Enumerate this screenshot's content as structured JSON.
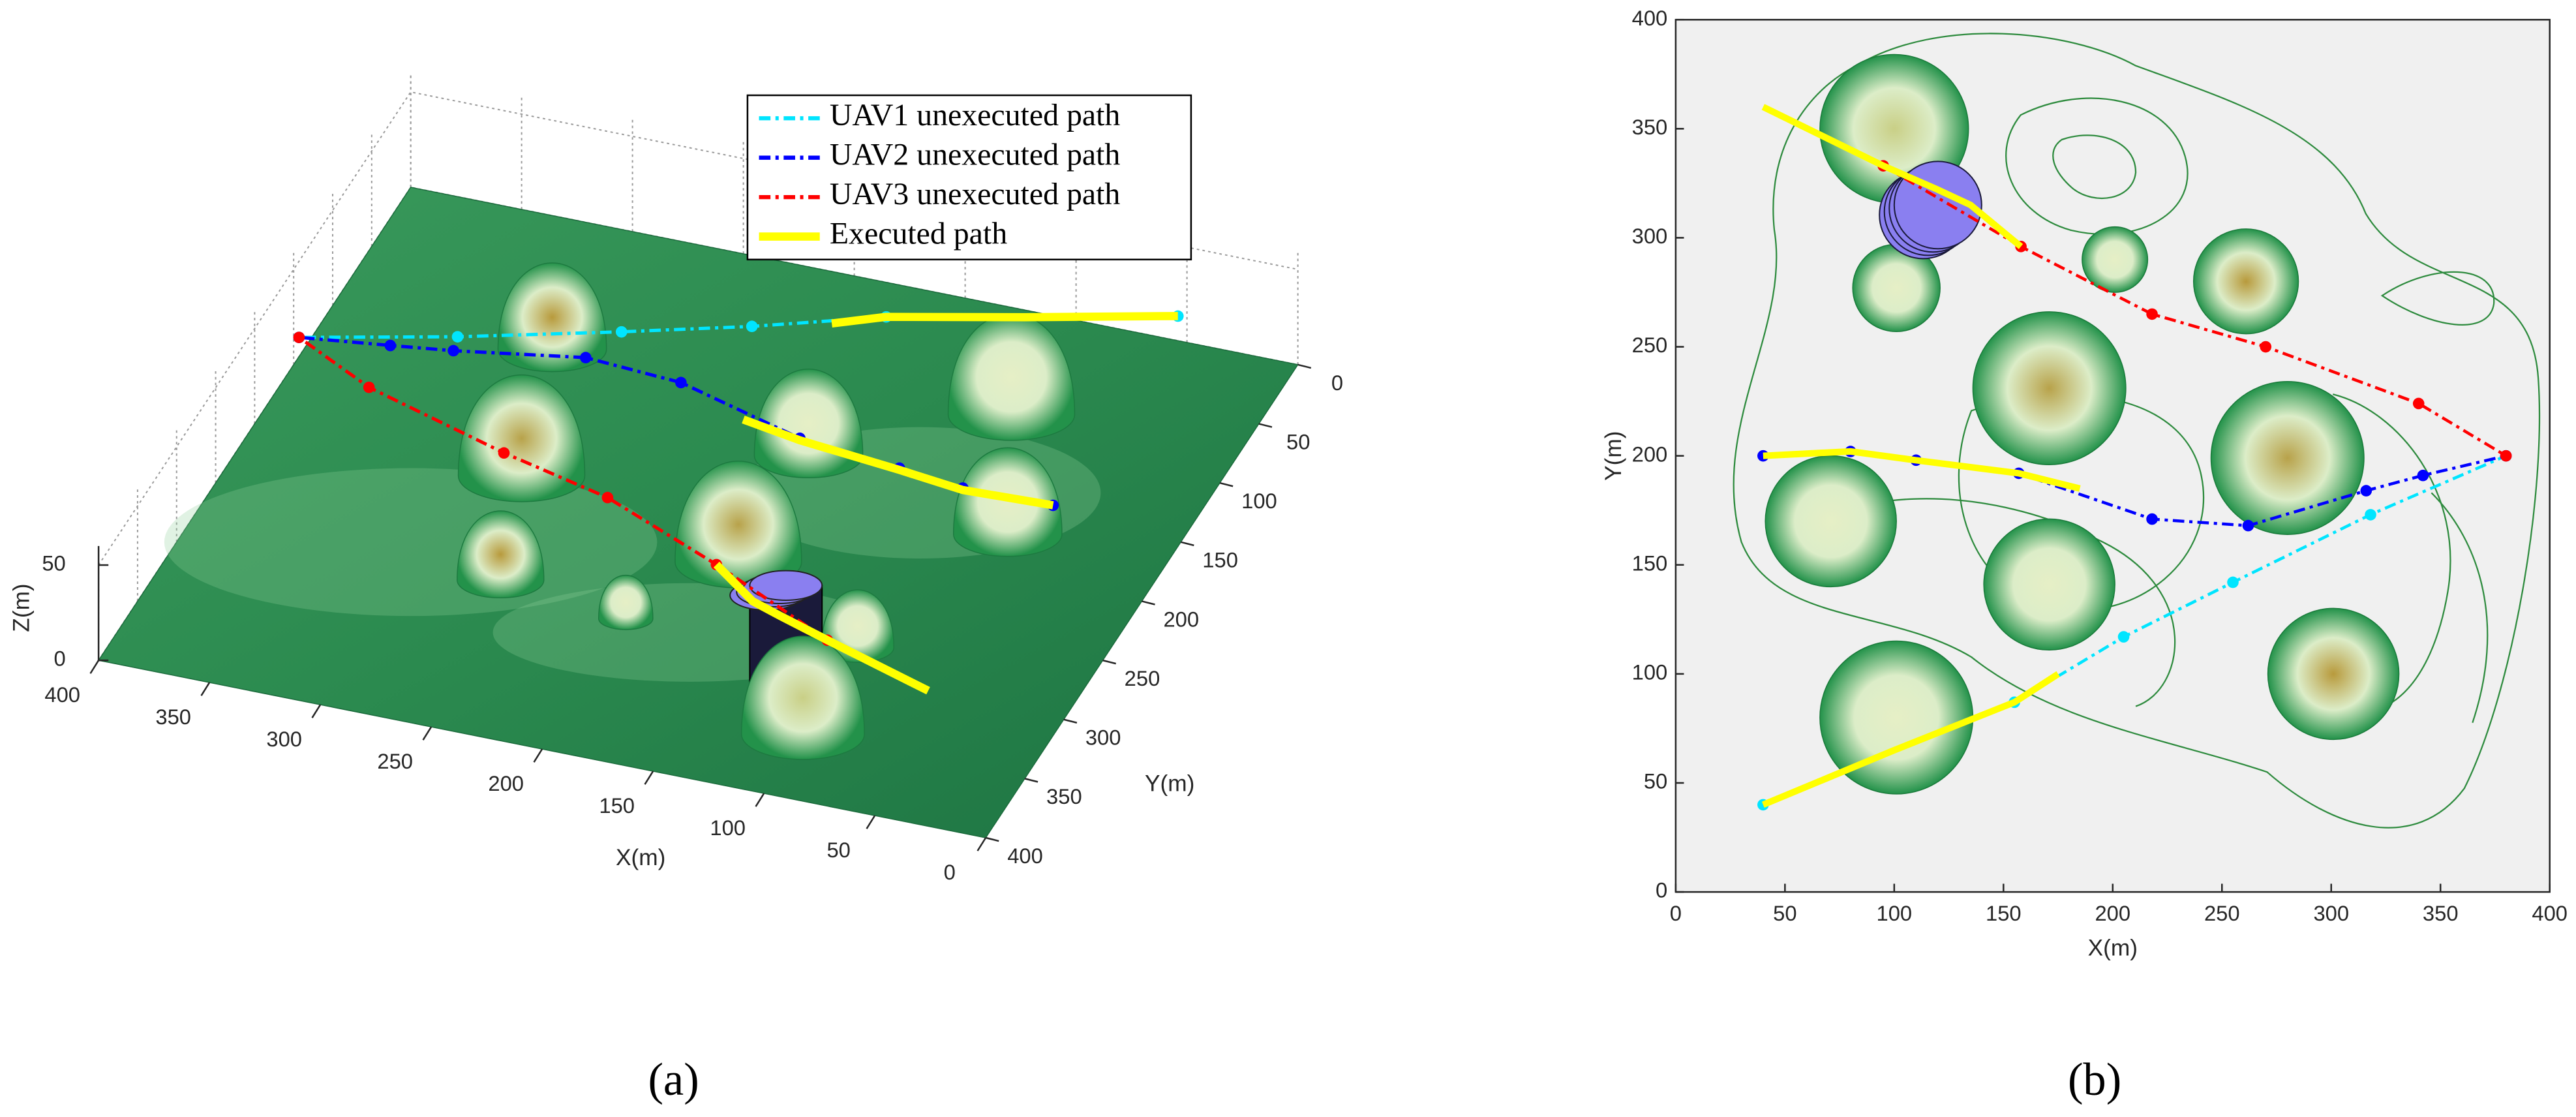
{
  "chart_data": [
    {
      "type": "surface3d",
      "caption": "(a)",
      "xlabel": "X(m)",
      "ylabel": "Y(m)",
      "zlabel": "Z(m)",
      "xlim": [
        0,
        400
      ],
      "ylim": [
        0,
        400
      ],
      "zlim": [
        0,
        60
      ],
      "xticks": [
        0,
        50,
        100,
        150,
        200,
        250,
        300,
        350,
        400
      ],
      "yticks": [
        0,
        50,
        100,
        150,
        200,
        250,
        300,
        350,
        400
      ],
      "zticks": [
        0,
        50
      ],
      "grid": true,
      "legend": "upper right",
      "series": [
        {
          "name": "UAV1 unexecuted path",
          "color": "#00e5ff",
          "style": "dash-dot",
          "x": [
            40,
            155,
            205,
            255,
            318,
            380
          ],
          "y": [
            40,
            87,
            117,
            142,
            173,
            200
          ],
          "z": [
            41,
            43,
            45,
            46,
            48,
            50
          ]
        },
        {
          "name": "UAV2 unexecuted path",
          "color": "#0000ff",
          "style": "dash-dot",
          "x": [
            40,
            80,
            110,
            157,
            218,
            262,
            316,
            342,
            380
          ],
          "y": [
            200,
            202,
            198,
            192,
            171,
            168,
            184,
            191,
            200
          ],
          "z": [
            41,
            42,
            43,
            44,
            46,
            47,
            48,
            49,
            50
          ]
        },
        {
          "name": "UAV3 unexecuted path",
          "color": "#ff0000",
          "style": "dash-dot",
          "x": [
            95,
            158,
            218,
            270,
            340,
            380
          ],
          "y": [
            333,
            296,
            265,
            250,
            224,
            200
          ],
          "z": [
            40,
            42,
            44,
            46,
            48,
            50
          ]
        },
        {
          "name": "Executed path",
          "color": "#ffff00",
          "style": "solid",
          "x": [
            40,
            100,
            155,
            175,
            null,
            40,
            80,
            110,
            157,
            185,
            null,
            40,
            95,
            120,
            135,
            158
          ],
          "y": [
            40,
            65,
            87,
            100,
            null,
            200,
            202,
            198,
            192,
            185,
            null,
            360,
            333,
            322,
            315,
            296
          ],
          "z": [
            41,
            42,
            43,
            43,
            null,
            41,
            41,
            42,
            43,
            43,
            null,
            43,
            40,
            40,
            40,
            42
          ]
        }
      ]
    },
    {
      "type": "line",
      "caption": "(b)",
      "xlabel": "X(m)",
      "ylabel": "Y(m)",
      "xlim": [
        0,
        400
      ],
      "ylim": [
        0,
        400
      ],
      "xticks": [
        0,
        50,
        100,
        150,
        200,
        250,
        300,
        350,
        400
      ],
      "yticks": [
        0,
        50,
        100,
        150,
        200,
        250,
        300,
        350,
        400
      ],
      "series": [
        {
          "color": "#00e5ff",
          "style": "dash-dot",
          "x": [
            40,
            155,
            205,
            255,
            318,
            380
          ],
          "y": [
            40,
            87,
            117,
            142,
            173,
            200
          ]
        },
        {
          "color": "#0000ff",
          "style": "dash-dot",
          "x": [
            40,
            80,
            110,
            157,
            218,
            262,
            316,
            342,
            380
          ],
          "y": [
            200,
            202,
            198,
            192,
            171,
            168,
            184,
            191,
            200
          ]
        },
        {
          "color": "#ff0000",
          "style": "dash-dot",
          "x": [
            95,
            158,
            218,
            270,
            340,
            380
          ],
          "y": [
            333,
            296,
            265,
            250,
            224,
            200
          ]
        },
        {
          "color": "#ffff00",
          "style": "solid",
          "x": [
            40,
            100,
            155,
            175,
            null,
            40,
            80,
            110,
            157,
            185,
            null,
            40,
            95,
            120,
            135,
            158
          ],
          "y": [
            40,
            65,
            87,
            100,
            null,
            200,
            202,
            198,
            192,
            185,
            null,
            360,
            333,
            322,
            315,
            296
          ]
        }
      ],
      "obstacles": [
        {
          "shape": "dome",
          "x": 100,
          "y": 350,
          "r": 34,
          "color": "#c9cf86"
        },
        {
          "shape": "dome",
          "x": 101,
          "y": 277,
          "r": 20,
          "color": "#e6efc6"
        },
        {
          "shape": "dome",
          "x": 201,
          "y": 290,
          "r": 15,
          "color": "#e6efc6"
        },
        {
          "shape": "dome",
          "x": 261,
          "y": 280,
          "r": 24,
          "color": "#b89a3c"
        },
        {
          "shape": "dome",
          "x": 171,
          "y": 231,
          "r": 35,
          "color": "#b8a24a"
        },
        {
          "shape": "dome",
          "x": 280,
          "y": 199,
          "r": 35,
          "color": "#b8a24a"
        },
        {
          "shape": "dome",
          "x": 71,
          "y": 170,
          "r": 30,
          "color": "#e6efc6"
        },
        {
          "shape": "dome",
          "x": 171,
          "y": 141,
          "r": 30,
          "color": "#e6efc6"
        },
        {
          "shape": "dome",
          "x": 101,
          "y": 80,
          "r": 35,
          "color": "#e6efc6"
        },
        {
          "shape": "dome",
          "x": 301,
          "y": 100,
          "r": 30,
          "color": "#b89a3c"
        },
        {
          "shape": "cylinder",
          "x": 120,
          "y": 315,
          "r": 20,
          "color": "#8a7ff0"
        }
      ]
    }
  ]
}
